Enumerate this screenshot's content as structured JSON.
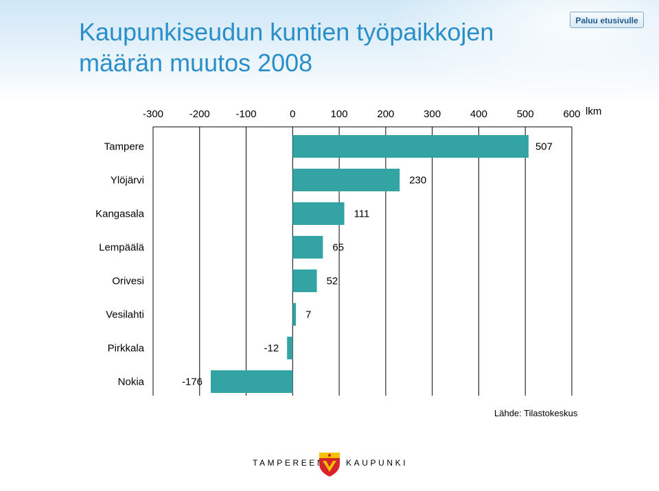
{
  "title": "Kaupunkiseudun kuntien työpaikkojen määrän muutos 2008",
  "home_button": "Paluu etusivulle",
  "source": "Lähde: Tilastokeskus",
  "footer": {
    "left": "TAMPEREEN",
    "right": "KAUPUNKI"
  },
  "colors": {
    "bar": "#33a3a3",
    "title": "#2a8fc8"
  },
  "chart_data": {
    "type": "bar",
    "orientation": "horizontal",
    "categories": [
      "Tampere",
      "Ylöjärvi",
      "Kangasala",
      "Lempäälä",
      "Orivesi",
      "Vesilahti",
      "Pirkkala",
      "Nokia"
    ],
    "values": [
      507,
      230,
      111,
      65,
      52,
      7,
      -12,
      -176
    ],
    "value_labels": [
      "507",
      "230",
      "111",
      "65",
      "52",
      "7",
      "-12",
      "-176"
    ],
    "xlim": [
      -300,
      600
    ],
    "xticks": [
      -300,
      -200,
      -100,
      0,
      100,
      200,
      300,
      400,
      500,
      600
    ],
    "xtick_labels": [
      "-300",
      "-200",
      "-100",
      "0",
      "100",
      "200",
      "300",
      "400",
      "500",
      "600"
    ],
    "unit_label": "lkm",
    "axis_position": "top",
    "grid": true
  }
}
